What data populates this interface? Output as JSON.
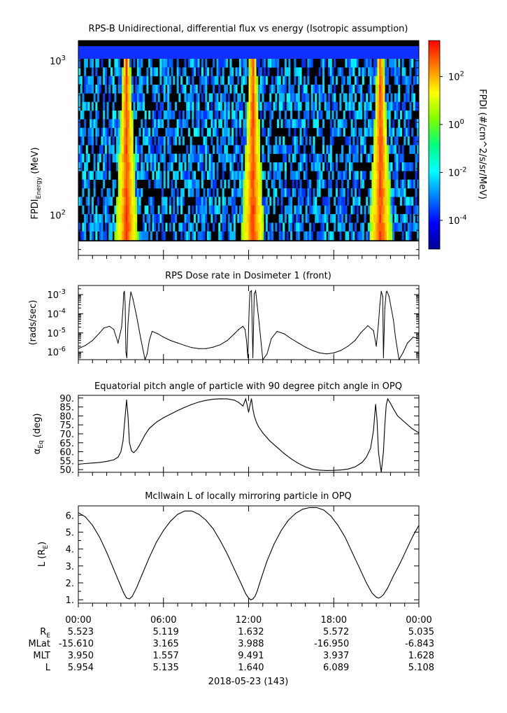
{
  "chart_data": [
    {
      "type": "heatmap",
      "title": "RPS-B  Unidirectional, differential flux vs energy (Isotropic assumption)",
      "ylabel_main": "FPDI",
      "ylabel_sub": "Energy",
      "ylabel_unit": " (MeV)",
      "yscale": "log",
      "ylim": [
        55,
        1350
      ],
      "yticks": [
        {
          "base": "10",
          "exp": "2",
          "value": 100
        },
        {
          "base": "10",
          "exp": "3",
          "value": 1000
        }
      ],
      "xlim": [
        0,
        24
      ],
      "bright_bands_hours": [
        3.4,
        12.3,
        21.3
      ],
      "colorbar": {
        "label": "FPDI (#/cm^2/s/sr/MeV)",
        "scale": "log",
        "range": [
          -5.2,
          3.5
        ],
        "ticks": [
          {
            "base": "10",
            "exp": "2",
            "value": 2
          },
          {
            "base": "10",
            "exp": "0",
            "value": 0
          },
          {
            "base": "10",
            "exp": "-2",
            "value": -2
          },
          {
            "base": "10",
            "exp": "-4",
            "value": -4
          }
        ],
        "colors": [
          "#00008f",
          "#0000ff",
          "#007fff",
          "#00ffff",
          "#00ff7f",
          "#7fff00",
          "#ffff00",
          "#ff7f00",
          "#ff0000"
        ]
      }
    },
    {
      "type": "line",
      "title": "RPS  Dose rate in Dosimeter 1 (front)",
      "ylabel": "(rads/sec)",
      "yscale": "log",
      "ylim": [
        4e-07,
        0.003
      ],
      "yticks": [
        {
          "base": "10",
          "exp": "-3",
          "value": 0.001
        },
        {
          "base": "10",
          "exp": "-4",
          "value": 0.0001
        },
        {
          "base": "10",
          "exp": "-5",
          "value": 1e-05
        },
        {
          "base": "10",
          "exp": "-6",
          "value": 1e-06
        }
      ],
      "xlim": [
        0,
        24
      ],
      "x": [
        0,
        0.5,
        1.0,
        1.5,
        1.8,
        2.2,
        2.5,
        2.8,
        3.05,
        3.15,
        3.2,
        3.25,
        3.3,
        3.35,
        3.42,
        3.5,
        3.6,
        3.7,
        3.85,
        4.1,
        4.4,
        4.7,
        4.85,
        5.0,
        5.2,
        5.6,
        6.0,
        6.5,
        7.0,
        7.5,
        8.0,
        8.5,
        9.0,
        9.5,
        10.0,
        10.5,
        11.0,
        11.3,
        11.6,
        11.75,
        11.85,
        11.95,
        12.0,
        12.05,
        12.1,
        12.2,
        12.3,
        12.4,
        12.5,
        12.6,
        12.75,
        13.0,
        13.3,
        13.6,
        14.0,
        14.5,
        15.0,
        15.5,
        16.0,
        16.5,
        17.0,
        17.5,
        18.0,
        18.5,
        19.0,
        19.5,
        19.9,
        20.4,
        20.8,
        21.0,
        21.15,
        21.25,
        21.35,
        21.45,
        21.5,
        21.6,
        21.7,
        21.75,
        21.9,
        22.05,
        22.2,
        22.35,
        22.6,
        22.9,
        23.2,
        23.6,
        24.0
      ],
      "y": [
        1.5e-06,
        2.2e-06,
        4e-06,
        1e-05,
        1.8e-05,
        2.2e-05,
        1.5e-05,
        3e-06,
        2e-05,
        0.0002,
        0.0012,
        0.0015,
        0.0003,
        1e-06,
        5e-07,
        3e-05,
        0.0003,
        0.0014,
        0.0006,
        8e-05,
        5e-06,
        4e-07,
        8e-07,
        4e-06,
        1.2e-05,
        9e-06,
        6e-06,
        4e-06,
        3e-06,
        2.2e-06,
        1.7e-06,
        1.5e-06,
        1.5e-06,
        1.8e-06,
        2.4e-06,
        4e-06,
        9e-06,
        1.5e-05,
        2.2e-05,
        1.5e-05,
        4e-06,
        5e-07,
        2e-05,
        0.0003,
        0.0014,
        0.0016,
        5e-07,
        0.0011,
        0.0016,
        0.0003,
        3e-05,
        4e-07,
        8e-07,
        5e-06,
        1.2e-05,
        9e-06,
        5e-06,
        3e-06,
        1.8e-06,
        1.2e-06,
        9e-07,
        8e-07,
        9e-07,
        1.2e-06,
        2e-06,
        4e-06,
        1e-05,
        2.4e-05,
        1.3e-05,
        2e-06,
        3e-05,
        0.0003,
        0.0015,
        0.0008,
        5e-07,
        0.0002,
        0.0013,
        0.0015,
        0.0008,
        0.0002,
        5e-05,
        6e-06,
        4e-07,
        1e-06,
        3e-06,
        6e-06,
        5e-06
      ]
    },
    {
      "type": "line",
      "title": "Equatorial pitch angle of particle with 90 degree pitch angle in OPQ",
      "ylabel_main": "α",
      "ylabel_sub": "Eq",
      "ylabel_unit": " (deg)",
      "ylim": [
        48.5,
        91.5
      ],
      "yticks": [
        "90.",
        "85.",
        "80.",
        "75.",
        "70.",
        "65.",
        "60.",
        "55.",
        "50."
      ],
      "ytick_values": [
        90,
        85,
        80,
        75,
        70,
        65,
        60,
        55,
        50
      ],
      "xlim": [
        0,
        24
      ],
      "x": [
        0,
        0.5,
        1.0,
        1.5,
        2.0,
        2.5,
        2.8,
        3.0,
        3.15,
        3.3,
        3.4,
        3.5,
        3.6,
        3.75,
        3.9,
        4.1,
        4.3,
        4.5,
        4.7,
        5.0,
        5.5,
        6.0,
        6.5,
        7.0,
        7.5,
        8.0,
        8.5,
        9.0,
        9.5,
        10.0,
        10.5,
        11.0,
        11.3,
        11.6,
        11.8,
        11.9,
        12.0,
        12.1,
        12.2,
        12.3,
        12.4,
        12.55,
        12.7,
        13.0,
        13.5,
        14.0,
        14.5,
        15.0,
        15.5,
        16.0,
        16.5,
        17.0,
        17.5,
        18.0,
        18.5,
        19.0,
        19.5,
        20.0,
        20.3,
        20.6,
        20.8,
        20.95,
        21.05,
        21.15,
        21.25,
        21.35,
        21.5,
        21.6,
        21.7,
        21.8,
        22.0,
        22.2,
        22.5,
        23.0,
        23.5,
        24.0
      ],
      "y": [
        53.0,
        53.4,
        53.7,
        54.0,
        54.6,
        55.5,
        57.0,
        60.0,
        66.0,
        80.0,
        89.0,
        80.0,
        65.0,
        60.5,
        59.5,
        61.0,
        63.5,
        66.5,
        69.5,
        73.0,
        76.5,
        79.0,
        81.0,
        83.0,
        84.8,
        86.4,
        87.8,
        88.7,
        89.3,
        89.6,
        89.5,
        88.8,
        87.5,
        85.5,
        89.5,
        86.0,
        82.0,
        86.0,
        89.6,
        84.0,
        80.0,
        76.5,
        74.0,
        70.5,
        66.0,
        62.5,
        59.0,
        56.0,
        53.5,
        51.5,
        50.2,
        49.7,
        49.5,
        49.6,
        49.8,
        50.3,
        51.5,
        54.0,
        57.0,
        62.0,
        72.0,
        86.5,
        78.0,
        60.0,
        54.0,
        48.5,
        60.0,
        75.0,
        86.0,
        89.5,
        87.0,
        84.0,
        80.0,
        76.5,
        73.0,
        70.5
      ]
    },
    {
      "type": "line",
      "title": "McIlwain L of locally mirroring particle in OPQ",
      "ylabel_main": "L (R",
      "ylabel_sub": "E",
      "ylabel_unit": ")",
      "ylim": [
        0.8,
        6.55
      ],
      "yticks": [
        "6.",
        "5.",
        "4.",
        "3.",
        "2.",
        "1."
      ],
      "ytick_values": [
        6,
        5,
        4,
        3,
        2,
        1
      ],
      "xlim": [
        0,
        24
      ],
      "x": [
        0,
        0.5,
        1.0,
        1.5,
        2.0,
        2.5,
        2.9,
        3.2,
        3.4,
        3.6,
        3.8,
        4.1,
        4.5,
        5.0,
        5.5,
        6.0,
        6.5,
        7.0,
        7.5,
        8.0,
        8.5,
        9.0,
        9.5,
        10.0,
        10.5,
        11.0,
        11.5,
        11.8,
        12.0,
        12.15,
        12.3,
        12.45,
        12.6,
        12.9,
        13.3,
        13.8,
        14.3,
        14.8,
        15.3,
        15.8,
        16.3,
        16.8,
        17.3,
        17.8,
        18.3,
        18.8,
        19.3,
        19.8,
        20.3,
        20.7,
        21.0,
        21.15,
        21.3,
        21.5,
        21.8,
        22.2,
        22.7,
        23.2,
        23.6,
        24.0
      ],
      "y": [
        6.15,
        5.9,
        5.4,
        4.7,
        3.8,
        2.8,
        2.0,
        1.4,
        1.1,
        1.05,
        1.2,
        1.7,
        2.5,
        3.5,
        4.4,
        5.1,
        5.65,
        6.05,
        6.25,
        6.25,
        6.05,
        5.7,
        5.2,
        4.5,
        3.7,
        2.8,
        1.9,
        1.35,
        1.1,
        1.0,
        1.05,
        1.2,
        1.5,
        2.3,
        3.3,
        4.3,
        5.1,
        5.7,
        6.1,
        6.35,
        6.45,
        6.45,
        6.3,
        5.95,
        5.4,
        4.7,
        3.8,
        2.9,
        2.0,
        1.4,
        1.15,
        1.1,
        1.15,
        1.3,
        1.7,
        2.4,
        3.2,
        4.1,
        4.8,
        5.4
      ]
    }
  ],
  "time_axis": {
    "tick_labels": [
      "00:00",
      "06:00",
      "12:00",
      "18:00",
      "00:00"
    ],
    "tick_hours": [
      0,
      6,
      12,
      18,
      24
    ],
    "minor_hours": [
      1,
      2,
      3,
      4,
      5,
      7,
      8,
      9,
      10,
      11,
      13,
      14,
      15,
      16,
      17,
      19,
      20,
      21,
      22,
      23
    ],
    "rows": [
      {
        "name": "R",
        "sub": "E",
        "values": [
          "5.523",
          "5.119",
          "1.632",
          "5.572",
          "5.035"
        ]
      },
      {
        "name": "MLat",
        "sub": "",
        "values": [
          "-15.610",
          "3.165",
          "3.988",
          "-16.950",
          "-6.843"
        ]
      },
      {
        "name": "MLT",
        "sub": "",
        "values": [
          "3.950",
          "1.557",
          "9.491",
          "3.937",
          "1.628"
        ]
      },
      {
        "name": "L",
        "sub": "",
        "values": [
          "5.954",
          "5.135",
          "1.640",
          "6.089",
          "5.108"
        ]
      }
    ],
    "date_label": "2018-05-23 (143)"
  }
}
